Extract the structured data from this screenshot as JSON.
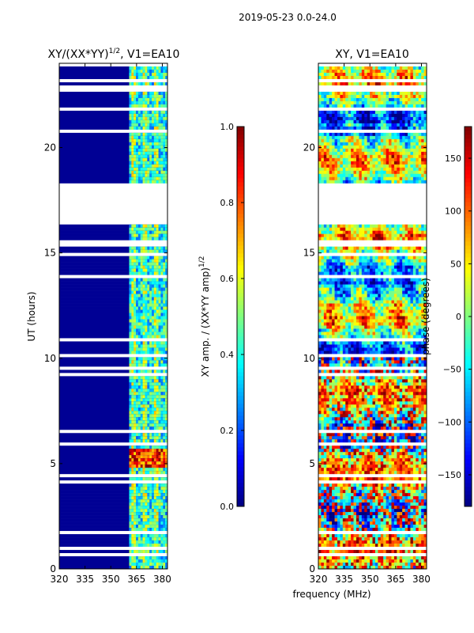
{
  "suptitle": "2019-05-23 0.0-24.0",
  "chart_data": [
    {
      "type": "heatmap",
      "title_main": "XY/(XX*YY)",
      "title_exp": "1/2",
      "title_rest": ", V1=EA10",
      "xlabel": "",
      "ylabel": "UT (hours)",
      "xlim": [
        320,
        383
      ],
      "ylim": [
        0,
        24
      ],
      "xticks": [
        320,
        335,
        350,
        365,
        380
      ],
      "yticks": [
        0,
        5,
        10,
        15,
        20
      ],
      "x_ticklabels": [
        "320",
        "335",
        "350",
        "365",
        "380"
      ],
      "y_ticklabels": [
        "0",
        "5",
        "10",
        "15",
        "20"
      ],
      "colormap": "jet",
      "colorbar": {
        "label_main": "XY amp. / (XX*YY amp)",
        "label_exp": "1/2",
        "range": [
          0.0,
          1.0
        ],
        "ticks": [
          0.0,
          0.2,
          0.4,
          0.6,
          0.8,
          1.0
        ],
        "ticklabels": [
          "0.0",
          "0.2",
          "0.4",
          "0.6",
          "0.8",
          "1.0"
        ]
      },
      "flagged_gap_hours": [
        18.3,
        16.3
      ],
      "active_band_mhz": [
        361,
        383
      ],
      "background_value": 0.02,
      "burst_interval_hours": [
        4.8,
        5.7
      ]
    },
    {
      "type": "heatmap",
      "title": "XY, V1=EA10",
      "xlabel": "frequency (MHz)",
      "ylabel": "",
      "xlim": [
        320,
        383
      ],
      "ylim": [
        0,
        24
      ],
      "xticks": [
        320,
        335,
        350,
        365,
        380
      ],
      "yticks": [
        0,
        5,
        10,
        15,
        20
      ],
      "x_ticklabels": [
        "320",
        "335",
        "350",
        "365",
        "380"
      ],
      "y_ticklabels": [
        "0",
        "5",
        "10",
        "15",
        "20"
      ],
      "colormap": "jet",
      "colorbar": {
        "label": "phase (degrees)",
        "range": [
          -180,
          180
        ],
        "ticks": [
          -150,
          -100,
          -50,
          0,
          50,
          100,
          150
        ],
        "ticklabels": [
          "−150",
          "−100",
          "−50",
          "0",
          "50",
          "100",
          "150"
        ]
      },
      "flagged_gap_hours": [
        18.3,
        16.3
      ]
    }
  ]
}
